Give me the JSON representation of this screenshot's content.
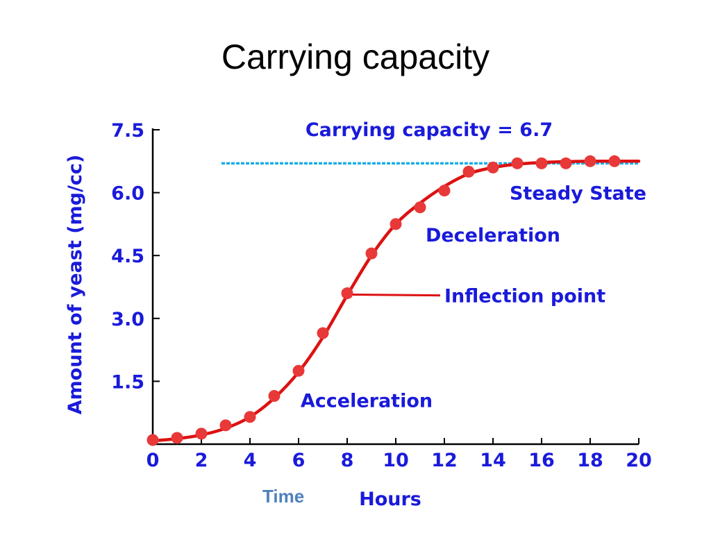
{
  "slide": {
    "title": "Carrying capacity",
    "time_label": "Time"
  },
  "colors": {
    "axis_text": "#1a1adb",
    "curve": "#dd1111",
    "points": "#e83838",
    "capacity_line": "#1aaee8",
    "time_label": "#4f81bd"
  },
  "chart_data": {
    "type": "line",
    "title": "",
    "xlabel": "Hours",
    "ylabel": "Amount of yeast (mg/cc)",
    "xlim": [
      0,
      20
    ],
    "ylim": [
      0,
      7.5
    ],
    "x_ticks": [
      0,
      2,
      4,
      6,
      8,
      10,
      12,
      14,
      16,
      18,
      20
    ],
    "x_tick_labels": [
      "0",
      "2",
      "4",
      "6",
      "8",
      "10",
      "12",
      "14",
      "16",
      "18",
      "20"
    ],
    "y_ticks": [
      1.5,
      3.0,
      4.5,
      6.0,
      7.5
    ],
    "y_tick_labels": [
      "1.5",
      "3.0",
      "4.5",
      "6.0",
      "7.5"
    ],
    "grid": false,
    "legend": "none",
    "series": [
      {
        "kind": "points",
        "x": [
          0,
          1,
          2,
          3,
          4,
          5,
          6,
          7,
          8,
          9,
          10,
          11,
          12,
          13,
          14,
          15,
          16,
          17,
          18,
          19
        ],
        "y": [
          0.1,
          0.15,
          0.25,
          0.45,
          0.65,
          1.15,
          1.75,
          2.65,
          3.6,
          4.55,
          5.25,
          5.65,
          6.05,
          6.5,
          6.6,
          6.7,
          6.7,
          6.7,
          6.75,
          6.75
        ]
      },
      {
        "kind": "curve",
        "x": [
          0,
          1,
          2,
          3,
          4,
          5,
          6,
          7,
          8,
          9,
          10,
          11,
          12,
          13,
          14,
          15,
          16,
          17,
          18,
          19,
          20
        ],
        "y": [
          0.08,
          0.13,
          0.22,
          0.38,
          0.65,
          1.1,
          1.72,
          2.55,
          3.55,
          4.5,
          5.25,
          5.75,
          6.15,
          6.45,
          6.6,
          6.68,
          6.72,
          6.74,
          6.75,
          6.75,
          6.75
        ]
      }
    ],
    "reference_line": {
      "y": 6.7,
      "x_start": 3,
      "x_end": 20,
      "style": "dashed",
      "label": "Carrying capacity = 6.7"
    },
    "annotations": [
      {
        "text": "Steady State",
        "x": 17.5,
        "y": 6.0
      },
      {
        "text": "Deceleration",
        "x": 14.0,
        "y": 5.0
      },
      {
        "text": "Inflection point",
        "x": 12.0,
        "y": 3.55,
        "pointer_to": [
          8,
          3.6
        ]
      },
      {
        "text": "Acceleration",
        "x": 8.8,
        "y": 1.05
      }
    ]
  }
}
